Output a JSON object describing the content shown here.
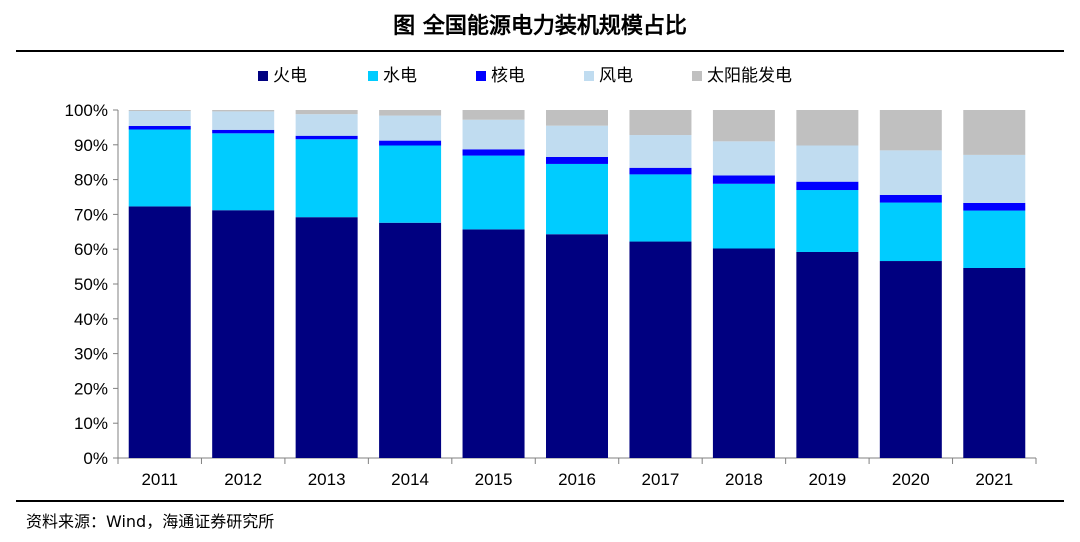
{
  "title": "图  全国能源电力装机规模占比",
  "source": "资料来源：Wind，海通证券研究所",
  "chart_data": {
    "type": "bar",
    "stacked": true,
    "categories": [
      "2011",
      "2012",
      "2013",
      "2014",
      "2015",
      "2016",
      "2017",
      "2018",
      "2019",
      "2020",
      "2021"
    ],
    "series": [
      {
        "name": "火电",
        "color": "#000080",
        "values": [
          72.3,
          71.2,
          69.2,
          67.6,
          65.7,
          64.3,
          62.2,
          60.2,
          59.2,
          56.6,
          54.6
        ]
      },
      {
        "name": "水电",
        "color": "#00CCFF",
        "values": [
          22.1,
          22.1,
          22.4,
          22.2,
          21.2,
          20.2,
          19.3,
          18.6,
          17.8,
          16.8,
          16.5
        ]
      },
      {
        "name": "核电",
        "color": "#0000FF",
        "values": [
          1.0,
          1.0,
          1.0,
          1.4,
          1.8,
          2.0,
          1.9,
          2.4,
          2.4,
          2.2,
          2.2
        ]
      },
      {
        "name": "风电",
        "color": "#C0DCF0",
        "values": [
          4.3,
          5.3,
          6.2,
          7.2,
          8.5,
          9.0,
          9.4,
          9.8,
          10.4,
          12.8,
          13.8
        ]
      },
      {
        "name": "太阳能发电",
        "color": "#C0C0C0",
        "values": [
          0.3,
          0.4,
          1.2,
          1.6,
          2.8,
          4.5,
          7.2,
          9.0,
          10.2,
          11.6,
          12.9
        ]
      }
    ],
    "yticks": [
      "0%",
      "10%",
      "20%",
      "30%",
      "40%",
      "50%",
      "60%",
      "70%",
      "80%",
      "90%",
      "100%"
    ],
    "ylim": [
      0,
      100
    ],
    "legend": "top",
    "grid": false
  }
}
